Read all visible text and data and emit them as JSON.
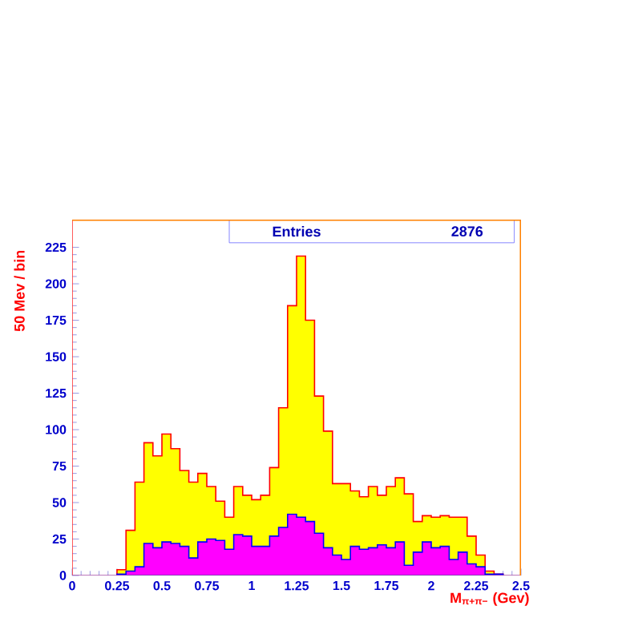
{
  "chart_data": {
    "type": "histogram",
    "xlabel": "M$_{π+π−}$ (Gev)",
    "ylabel": "50 Mev / bin",
    "annotations": [
      "Entries",
      "2876"
    ],
    "bins": [
      0.25,
      0.3,
      0.35,
      0.4,
      0.45,
      0.5,
      0.55,
      0.6,
      0.65,
      0.7,
      0.75,
      0.8,
      0.85,
      0.9,
      0.95,
      1.0,
      1.05,
      1.1,
      1.15,
      1.2,
      1.25,
      1.3,
      1.35,
      1.4,
      1.45,
      1.5,
      1.55,
      1.6,
      1.65,
      1.7,
      1.75,
      1.8,
      1.85,
      1.9,
      1.95,
      2.0,
      2.05,
      2.1,
      2.15,
      2.2,
      2.25,
      2.3,
      2.35,
      2.4
    ],
    "series": [
      {
        "color": "#ffff00",
        "values": [
          4,
          31,
          64,
          91,
          82,
          97,
          87,
          72,
          64,
          70,
          61,
          51,
          40,
          61,
          55,
          52,
          55,
          74,
          115,
          185,
          219,
          175,
          123,
          99,
          63,
          63,
          58,
          54,
          61,
          55,
          61,
          67,
          56,
          37,
          41,
          40,
          41,
          40,
          40,
          27,
          14,
          3,
          1
        ]
      },
      {
        "color": "#ff00ff",
        "values": [
          1,
          3,
          6,
          22,
          19,
          23,
          22,
          20,
          12,
          23,
          25,
          24,
          18,
          28,
          27,
          20,
          20,
          27,
          33,
          42,
          40,
          37,
          29,
          19,
          14,
          11,
          20,
          18,
          19,
          21,
          19,
          23,
          7,
          16,
          23,
          19,
          20,
          11,
          16,
          8,
          6,
          1,
          1
        ]
      }
    ],
    "xlim": [
      0,
      2.5
    ],
    "ylim": [
      0,
      244
    ],
    "xticks": [
      0,
      0.25,
      0.5,
      0.75,
      1,
      1.25,
      1.5,
      1.75,
      2,
      2.25,
      2.5
    ],
    "yticks": [
      0,
      25,
      50,
      75,
      100,
      125,
      150,
      175,
      200,
      225
    ],
    "grid": false
  }
}
